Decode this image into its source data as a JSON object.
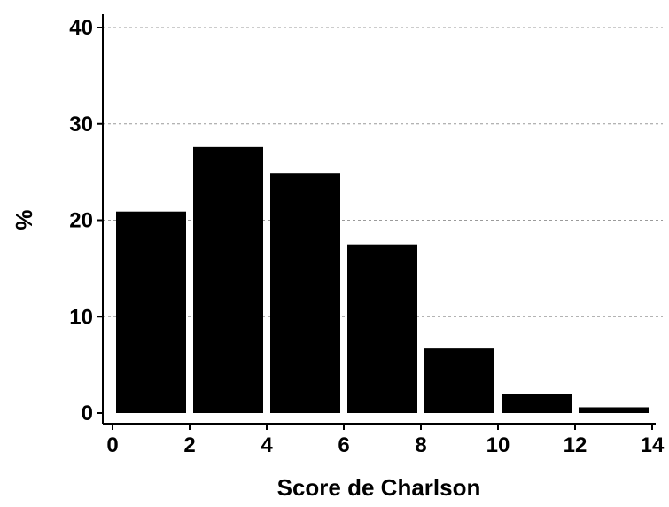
{
  "chart_data": {
    "type": "bar",
    "title": "",
    "xlabel": "Score de Charlson",
    "ylabel": "%",
    "bins": [
      {
        "x0": 0,
        "x1": 2,
        "value": 20.9
      },
      {
        "x0": 2,
        "x1": 4,
        "value": 27.6
      },
      {
        "x0": 4,
        "x1": 6,
        "value": 24.9
      },
      {
        "x0": 6,
        "x1": 8,
        "value": 17.5
      },
      {
        "x0": 8,
        "x1": 10,
        "value": 6.7
      },
      {
        "x0": 10,
        "x1": 12,
        "value": 2.0
      },
      {
        "x0": 12,
        "x1": 14,
        "value": 0.6
      }
    ],
    "xlim": [
      0,
      14
    ],
    "ylim": [
      0,
      40
    ],
    "xticks": [
      "0",
      "2",
      "4",
      "6",
      "8",
      "10",
      "12",
      "14"
    ],
    "yticks": [
      "0",
      "10",
      "20",
      "30",
      "40"
    ],
    "grid": "horizontal dashed",
    "bar_color": "#000000"
  }
}
